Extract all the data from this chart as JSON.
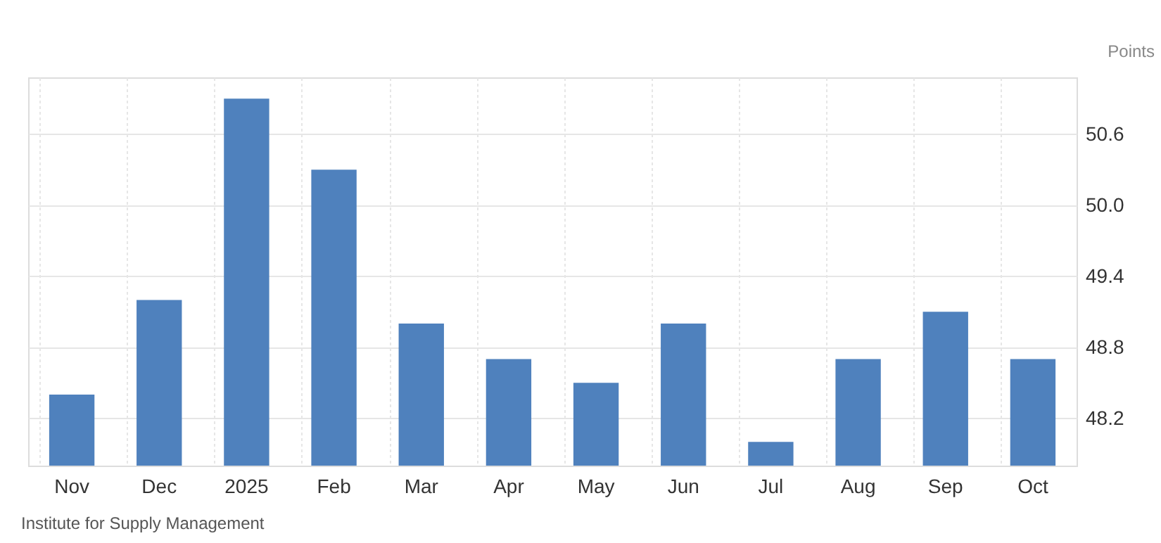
{
  "chart_data": {
    "type": "bar",
    "ylabel": "Points",
    "categories": [
      "Nov",
      "Dec",
      "2025",
      "Feb",
      "Mar",
      "Apr",
      "May",
      "Jun",
      "Jul",
      "Aug",
      "Sep",
      "Oct"
    ],
    "values": [
      48.4,
      49.2,
      50.9,
      50.3,
      49.0,
      48.7,
      48.5,
      49.0,
      48.0,
      48.7,
      49.1,
      48.7
    ],
    "color": "#4f81bd",
    "ylim": [
      47.8,
      51.08
    ],
    "yticks": [
      48.2,
      48.8,
      49.4,
      {
        "value": 50,
        "label": "50.0"
      },
      50.6
    ],
    "grid": true,
    "annotations": [
      "Institute for Supply Management"
    ]
  }
}
